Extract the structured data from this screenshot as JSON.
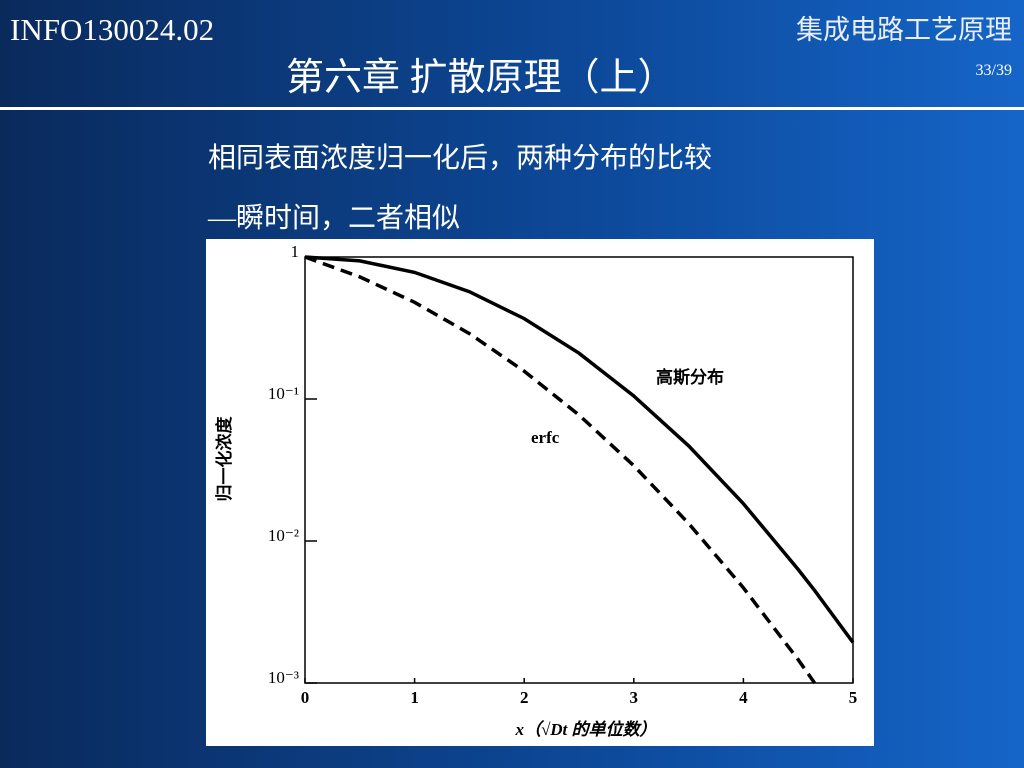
{
  "header": {
    "course_code": "INFO130024.02",
    "course_name": "集成电路工艺原理",
    "title": "第六章  扩散原理（上）",
    "page": "33/39"
  },
  "body": {
    "line1": "相同表面浓度归一化后，两种分布的比较",
    "line2": "—瞬时间，二者相似"
  },
  "chart_data": {
    "type": "line",
    "ylabel": "归一化浓度",
    "xlabel": "x（√Dt 的单位数）",
    "x": [
      0,
      0.5,
      1,
      1.5,
      2,
      2.5,
      3,
      3.5,
      4,
      4.5,
      4.65,
      5
    ],
    "series": [
      {
        "name": "高斯分布",
        "color": "#000000",
        "linestyle": "solid",
        "values": [
          1,
          0.939,
          0.779,
          0.57,
          0.368,
          0.21,
          0.105,
          0.0468,
          0.0183,
          0.0063,
          0.00449,
          0.00193
        ]
      },
      {
        "name": "erfc",
        "color": "#000000",
        "linestyle": "dashed",
        "values": [
          1,
          0.724,
          0.48,
          0.289,
          0.157,
          0.0771,
          0.0339,
          0.0133,
          0.00468,
          0.00146,
          0.001,
          null
        ]
      }
    ],
    "xlim": [
      0,
      5
    ],
    "xticks": [
      0,
      1,
      2,
      3,
      4,
      5
    ],
    "ylim": [
      0.001,
      1
    ],
    "yscale": "log",
    "yticks": [
      {
        "value": 0.001,
        "label": "10⁻³"
      },
      {
        "value": 0.01,
        "label": "10⁻²"
      },
      {
        "value": 0.1,
        "label": "10⁻¹"
      },
      1
    ],
    "grid": false
  }
}
